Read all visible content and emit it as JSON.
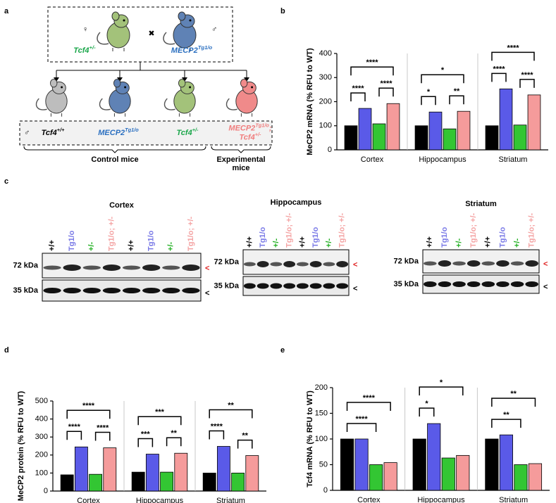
{
  "panel_labels": [
    "a",
    "b",
    "c",
    "d",
    "e"
  ],
  "diagram": {
    "female": "♀",
    "male": "♂",
    "cross": "✖",
    "parents": [
      {
        "gene": "Tcf4",
        "genotype": "+/-",
        "color": "#1aa64a"
      },
      {
        "gene": "MECP2",
        "genotype": "Tg1/o",
        "color": "#2a6fc0"
      }
    ],
    "offspring": [
      {
        "color": "#000000",
        "lines": [
          {
            "gene": "Tcf4",
            "genotype": "+/+"
          }
        ]
      },
      {
        "color": "#2a6fc0",
        "lines": [
          {
            "gene": "MECP2",
            "genotype": "Tg1/o"
          }
        ]
      },
      {
        "color": "#1aa64a",
        "lines": [
          {
            "gene": "Tcf4",
            "genotype": "+/-"
          }
        ]
      },
      {
        "color": "#f07d7d",
        "lines": [
          {
            "gene": "MECP2",
            "genotype": "Tg1/o",
            "suffix": ";"
          },
          {
            "gene": "Tcf4",
            "genotype": "+/-"
          }
        ]
      }
    ],
    "groups": [
      {
        "lines": [
          "Control mice"
        ]
      },
      {
        "lines": [
          "Experimental",
          "mice"
        ]
      }
    ]
  },
  "blots": {
    "regions": [
      "Cortex",
      "Hippocampus",
      "Striatum"
    ],
    "lanes": [
      {
        "label": "+/+",
        "color": "#000000"
      },
      {
        "label": "Tg1/o",
        "color": "#7878e6"
      },
      {
        "label": "+/-",
        "color": "#22b022"
      },
      {
        "label": "Tg1/o; +/-",
        "color": "#f4a3a3"
      }
    ],
    "markers": [
      "72 kDa",
      "35 kDa"
    ],
    "arrows": [
      {
        "symbol": "<",
        "color": "#e02020"
      },
      {
        "symbol": "<",
        "color": "#000000"
      }
    ]
  },
  "chart_data": [
    {
      "type": "bar",
      "ylabel": "MeCP2 mRNA (% RFU to WT)",
      "categories": [
        "Cortex",
        "Hippocampus",
        "Striatum"
      ],
      "series": [
        {
          "color": "#000000",
          "values": [
            100,
            100,
            100
          ]
        },
        {
          "color": "#5a5ae8",
          "values": [
            172,
            157,
            253
          ]
        },
        {
          "color": "#33c633",
          "values": [
            108,
            87,
            103
          ]
        },
        {
          "color": "#f59b9b",
          "values": [
            192,
            160,
            228
          ]
        }
      ],
      "ylim": [
        0,
        400
      ],
      "yticks": [
        0,
        100,
        200,
        300,
        400
      ],
      "significance": [
        {
          "category": 0,
          "from": 0,
          "to": 1,
          "label": "****"
        },
        {
          "category": 0,
          "from": 2,
          "to": 3,
          "label": "****"
        },
        {
          "category": 0,
          "from": 0,
          "to": 3,
          "label": "****"
        },
        {
          "category": 1,
          "from": 0,
          "to": 1,
          "label": "*"
        },
        {
          "category": 1,
          "from": 2,
          "to": 3,
          "label": "**"
        },
        {
          "category": 1,
          "from": 0,
          "to": 3,
          "label": "*"
        },
        {
          "category": 2,
          "from": 0,
          "to": 1,
          "label": "****"
        },
        {
          "category": 2,
          "from": 2,
          "to": 3,
          "label": "****"
        },
        {
          "category": 2,
          "from": 0,
          "to": 3,
          "label": "****"
        }
      ]
    },
    {
      "type": "bar",
      "ylabel": "MeCP2 protein (% RFU to WT)",
      "categories": [
        "Cortex",
        "Hippocampus",
        "Striatum"
      ],
      "series": [
        {
          "color": "#000000",
          "values": [
            90,
            105,
            100
          ]
        },
        {
          "color": "#5a5ae8",
          "values": [
            245,
            205,
            248
          ]
        },
        {
          "color": "#33c633",
          "values": [
            93,
            105,
            100
          ]
        },
        {
          "color": "#f59b9b",
          "values": [
            240,
            210,
            197
          ]
        }
      ],
      "ylim": [
        0,
        500
      ],
      "yticks": [
        0,
        100,
        200,
        300,
        400,
        500
      ],
      "significance": [
        {
          "category": 0,
          "from": 0,
          "to": 1,
          "label": "****"
        },
        {
          "category": 0,
          "from": 2,
          "to": 3,
          "label": "****"
        },
        {
          "category": 0,
          "from": 0,
          "to": 3,
          "label": "****"
        },
        {
          "category": 1,
          "from": 0,
          "to": 1,
          "label": "***"
        },
        {
          "category": 1,
          "from": 2,
          "to": 3,
          "label": "**"
        },
        {
          "category": 1,
          "from": 0,
          "to": 3,
          "label": "***"
        },
        {
          "category": 2,
          "from": 0,
          "to": 1,
          "label": "****"
        },
        {
          "category": 2,
          "from": 2,
          "to": 3,
          "label": "**"
        },
        {
          "category": 2,
          "from": 0,
          "to": 3,
          "label": "**"
        }
      ]
    },
    {
      "type": "bar",
      "ylabel": "Tcf4 mRNA (% RFU to WT)",
      "categories": [
        "Cortex",
        "Hippocampus",
        "Striatum"
      ],
      "series": [
        {
          "color": "#000000",
          "values": [
            100,
            100,
            100
          ]
        },
        {
          "color": "#5a5ae8",
          "values": [
            100,
            130,
            108
          ]
        },
        {
          "color": "#33c633",
          "values": [
            50,
            63,
            50
          ]
        },
        {
          "color": "#f59b9b",
          "values": [
            54,
            68,
            52
          ]
        }
      ],
      "ylim": [
        0,
        200
      ],
      "yticks": [
        0,
        50,
        100,
        150,
        200
      ],
      "significance": [
        {
          "category": 0,
          "from": 0,
          "to": 2,
          "label": "****"
        },
        {
          "category": 0,
          "from": 0,
          "to": 3,
          "label": "****"
        },
        {
          "category": 1,
          "from": 0,
          "to": 1,
          "label": "*"
        },
        {
          "category": 1,
          "from": 0,
          "to": 3,
          "label": "*"
        },
        {
          "category": 2,
          "from": 0,
          "to": 2,
          "label": "**"
        },
        {
          "category": 2,
          "from": 0,
          "to": 3,
          "label": "**"
        }
      ]
    }
  ]
}
